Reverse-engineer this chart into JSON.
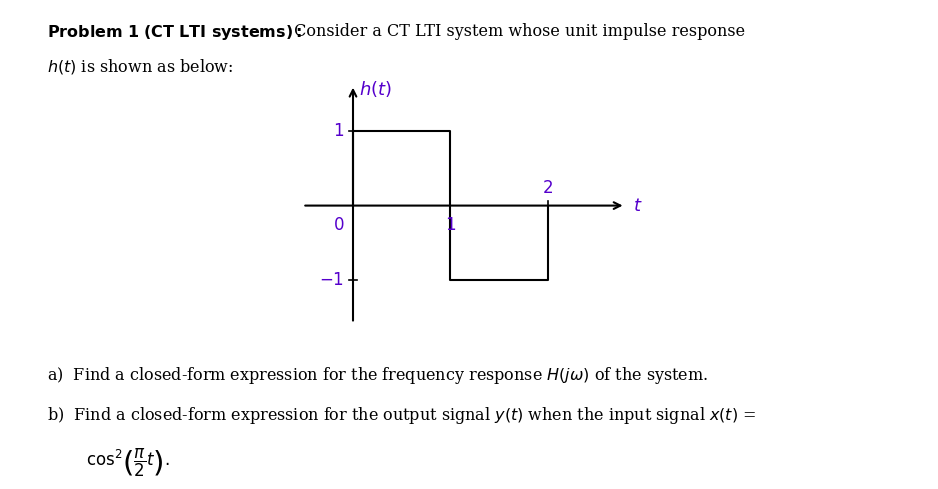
{
  "label_color": "#5500cc",
  "signal_color": "#000000",
  "background_color": "#ffffff",
  "signal_x": [
    0,
    0,
    1,
    1,
    2,
    2
  ],
  "signal_y": [
    0,
    1,
    1,
    -1,
    -1,
    0
  ],
  "xlim": [
    -0.55,
    2.85
  ],
  "ylim": [
    -1.65,
    1.7
  ],
  "header_bold": "Problem 1 (CT LTI systems):",
  "header_normal": " Consider a CT LTI system whose unit impulse response",
  "header_line2": "$h(t)$ is shown as below:",
  "question_a": "a)  Find a closed-form expression for the frequency response $H(j\\omega)$ of the system.",
  "question_b1": "b)  Find a closed-form expression for the output signal $y(t)$ when the input signal $x(t)$ =",
  "question_b2": "$\\cos^2\\!\\left(\\dfrac{\\pi}{2}t\\right).$"
}
